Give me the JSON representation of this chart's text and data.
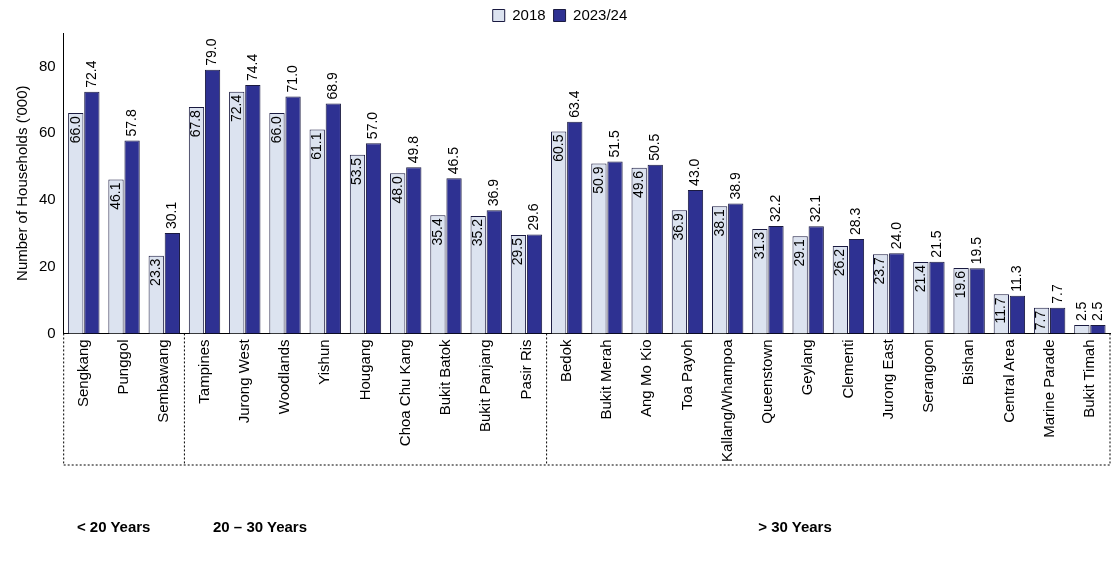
{
  "chart_data": {
    "type": "bar",
    "ylabel": "Number of Households ('000)",
    "categories": [
      "Sengkang",
      "Punggol",
      "Sembawang",
      "Tampines",
      "Jurong West",
      "Woodlands",
      "Yishun",
      "Hougang",
      "Choa Chu Kang",
      "Bukit Batok",
      "Bukit Panjang",
      "Pasir Ris",
      "Bedok",
      "Bukit Merah",
      "Ang Mo Kio",
      "Toa Payoh",
      "Kallang/Whampoa",
      "Queenstown",
      "Geylang",
      "Clementi",
      "Jurong East",
      "Serangoon",
      "Bishan",
      "Central Area",
      "Marine Parade",
      "Bukit Timah"
    ],
    "series": [
      {
        "name": "2018",
        "color": "#dce3f0",
        "values": [
          66.0,
          46.1,
          23.3,
          67.8,
          72.4,
          66.0,
          61.1,
          53.5,
          48.0,
          35.4,
          35.2,
          29.5,
          60.5,
          50.9,
          49.6,
          36.9,
          38.1,
          31.3,
          29.1,
          26.2,
          23.7,
          21.4,
          19.6,
          11.7,
          7.7,
          2.5
        ],
        "value_labels": [
          "66.0",
          "46.1",
          "23.3",
          "67.8",
          "72.4",
          "66.0",
          "61.1",
          "53.5",
          "48.0",
          "35.4",
          "35.2",
          "29.5",
          "60.5",
          "50.9",
          "49.6",
          "36.9",
          "38.1",
          "31.3",
          "29.1",
          "26.2",
          "23.7",
          "21.4",
          "19.6",
          "11.7",
          "7.7",
          "2.5"
        ]
      },
      {
        "name": "2023/24",
        "color": "#2e3192",
        "values": [
          72.4,
          57.8,
          30.1,
          79.0,
          74.4,
          71.0,
          68.9,
          57.0,
          49.8,
          46.5,
          36.9,
          29.6,
          63.4,
          51.5,
          50.5,
          43.0,
          38.9,
          32.2,
          32.1,
          28.3,
          24.0,
          21.5,
          19.5,
          11.3,
          7.7,
          2.5
        ],
        "value_labels": [
          "72.4",
          "57.8",
          "30.1",
          "79.0",
          "74.4",
          "71.0",
          "68.9",
          "57.0",
          "49.8",
          "46.5",
          "36.9",
          "29.6",
          "63.4",
          "51.5",
          "50.5",
          "43.0",
          "38.9",
          "32.2",
          "32.1",
          "28.3",
          "24.0",
          "21.5",
          "19.5",
          "11.3",
          "7.7",
          "2.5"
        ]
      }
    ],
    "ylim": [
      0,
      90
    ],
    "yticks": [
      0,
      20,
      40,
      60,
      80
    ],
    "grid": false,
    "legend": "top",
    "annotations": [
      "< 20 Years",
      "20 – 30 Years",
      "> 30 Years"
    ]
  }
}
